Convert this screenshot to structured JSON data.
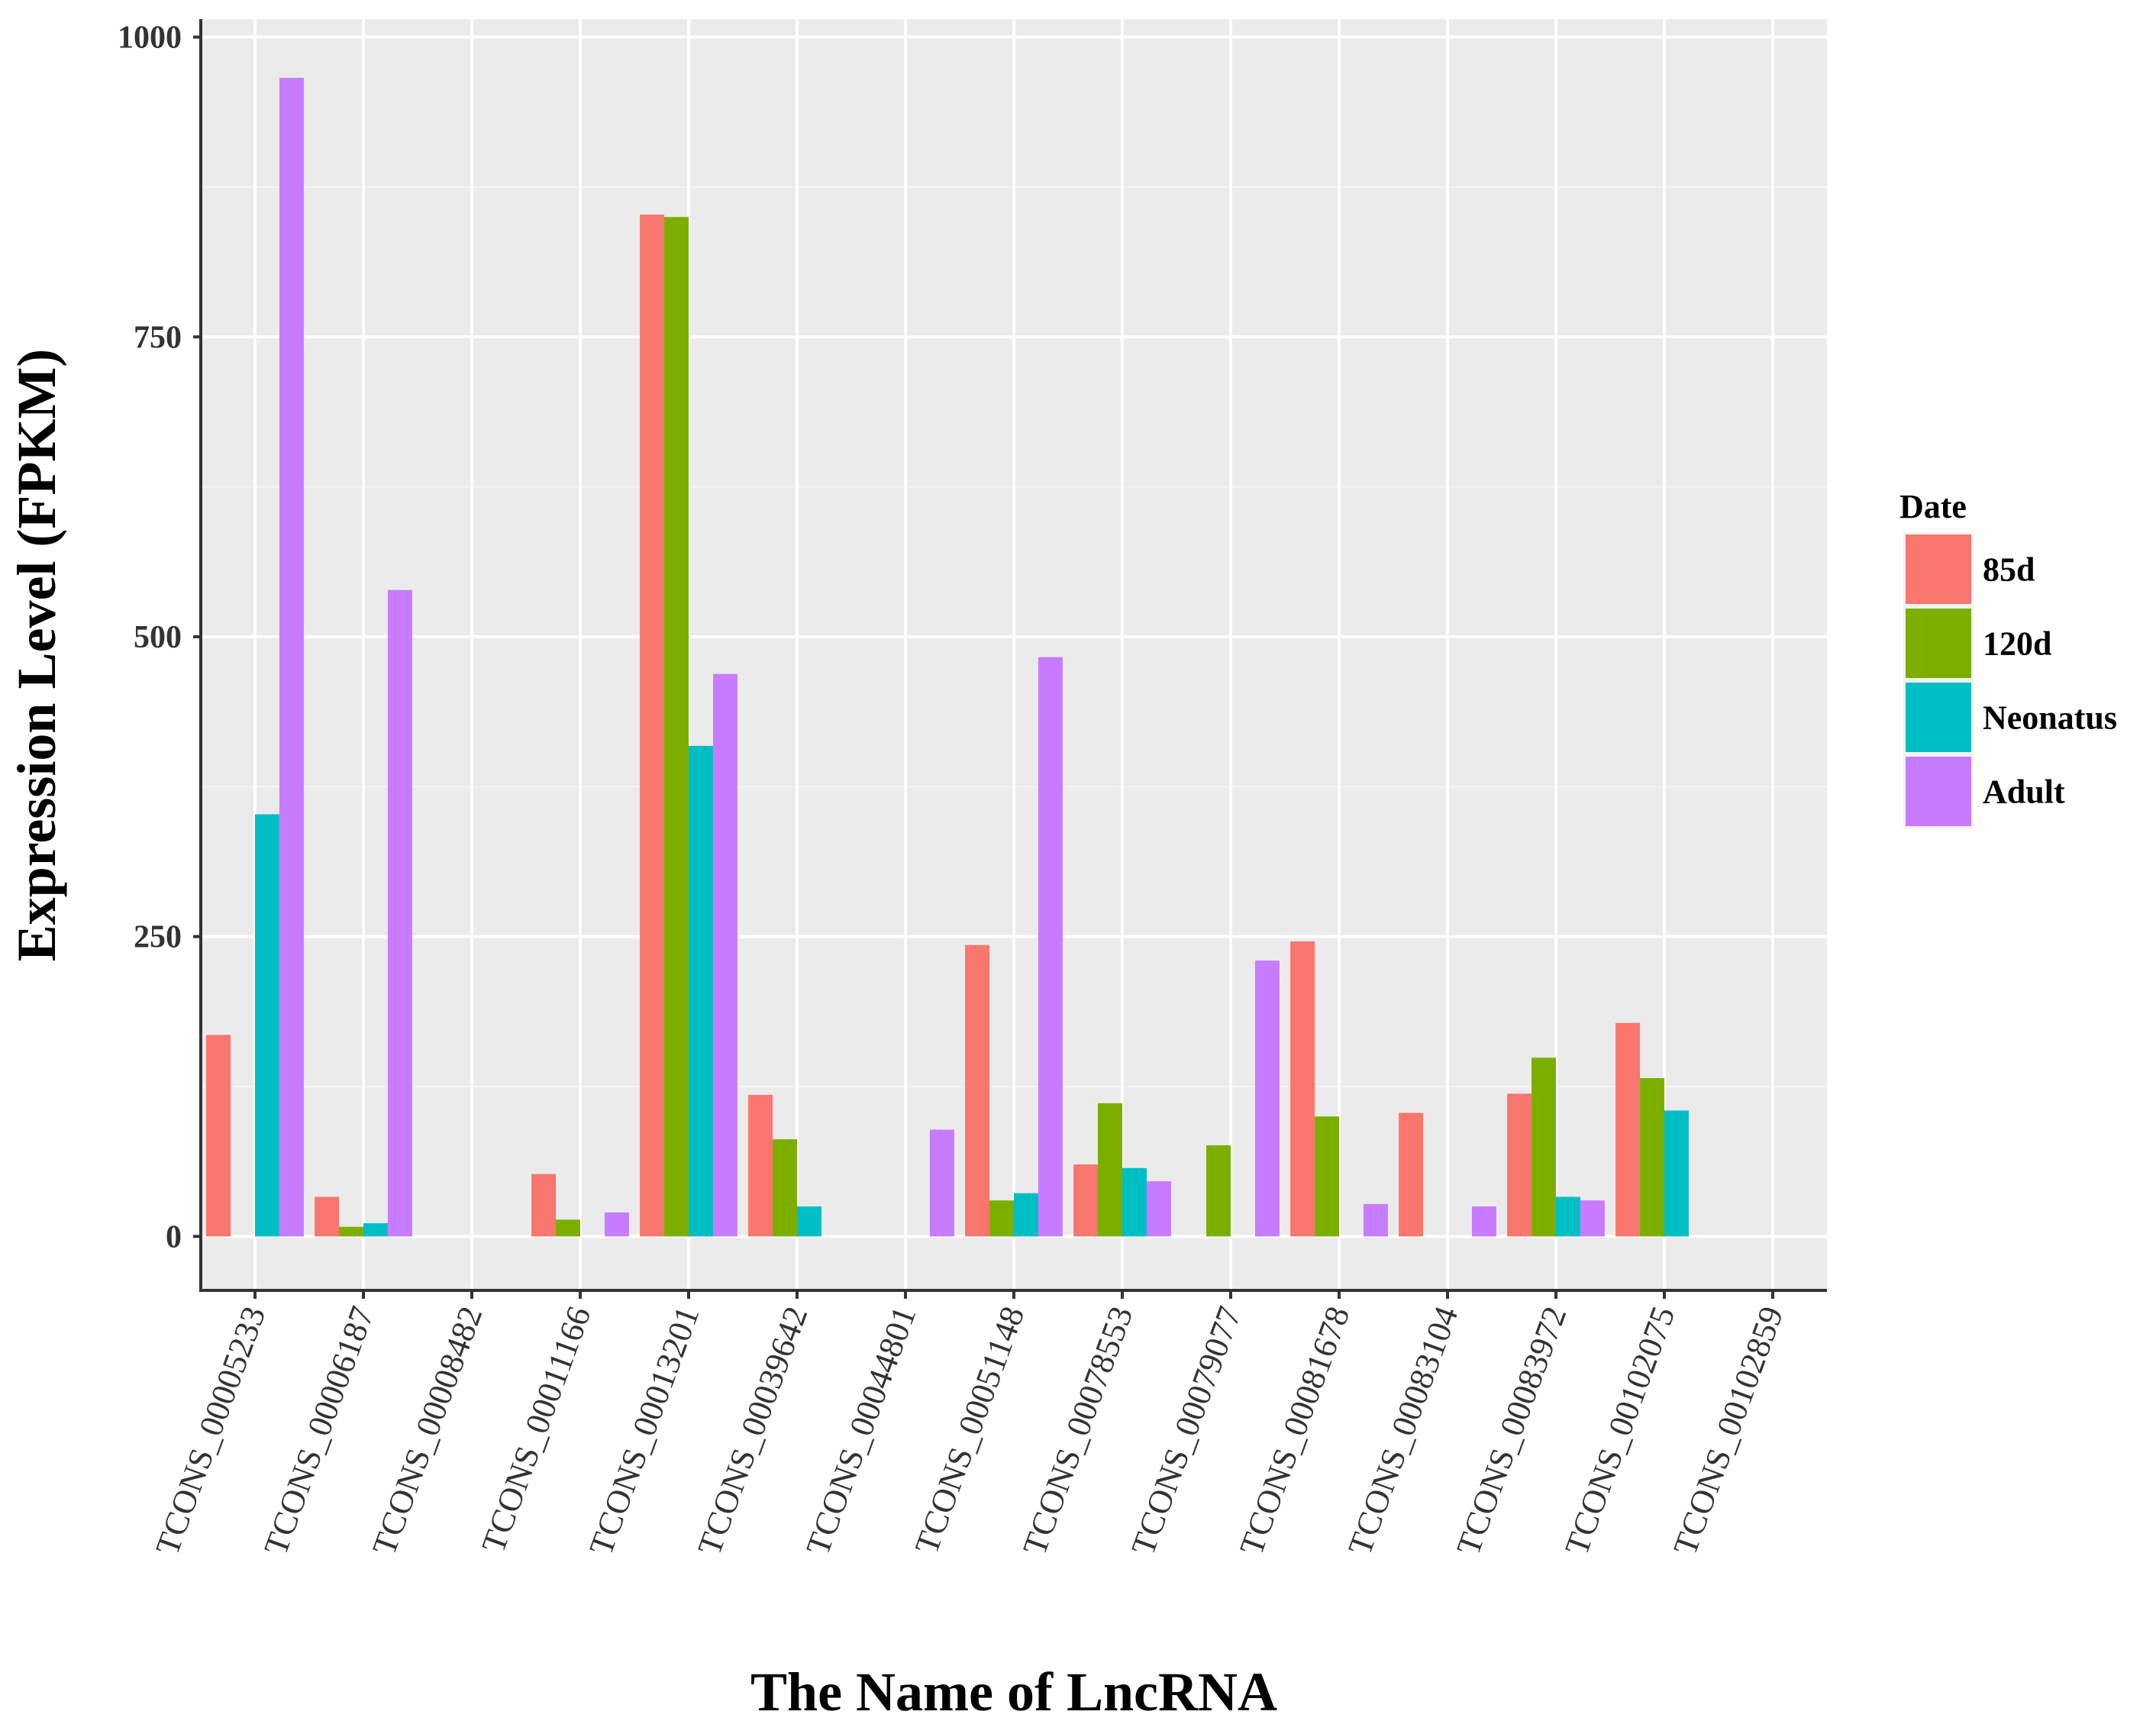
{
  "chart_data": {
    "type": "bar",
    "xlabel": "The Name of LncRNA",
    "ylabel": "Expression Level (FPKM)",
    "ylim": [
      -45,
      1015
    ],
    "yticks": [
      0,
      250,
      500,
      750,
      1000
    ],
    "grid": true,
    "legend": {
      "title": "Date",
      "position": "right"
    },
    "categories": [
      "TCONS_00005233",
      "TCONS_00006187",
      "TCONS_00008482",
      "TCONS_00011166",
      "TCONS_00013201",
      "TCONS_00039642",
      "TCONS_00044801",
      "TCONS_00051148",
      "TCONS_00078553",
      "TCONS_00079077",
      "TCONS_00081678",
      "TCONS_00083104",
      "TCONS_00083972",
      "TCONS_00102075",
      "TCONS_00102859"
    ],
    "series": [
      {
        "name": "85d",
        "color": "#F8766D",
        "values": [
          168,
          33,
          0,
          52,
          852,
          118,
          0,
          243,
          60,
          0,
          246,
          103,
          119,
          178,
          0
        ]
      },
      {
        "name": "120d",
        "color": "#7CAE00",
        "values": [
          0,
          8,
          0,
          14,
          850,
          81,
          0,
          30,
          111,
          76,
          100,
          0,
          149,
          132,
          0
        ]
      },
      {
        "name": "Neonatus",
        "color": "#00BFC4",
        "values": [
          352,
          11,
          0,
          0,
          409,
          25,
          0,
          36,
          57,
          0,
          0,
          0,
          33,
          105,
          0
        ]
      },
      {
        "name": "Adult",
        "color": "#C77CFF",
        "values": [
          966,
          539,
          0,
          20,
          469,
          0,
          89,
          483,
          46,
          230,
          27,
          25,
          30,
          0,
          0
        ]
      }
    ]
  }
}
